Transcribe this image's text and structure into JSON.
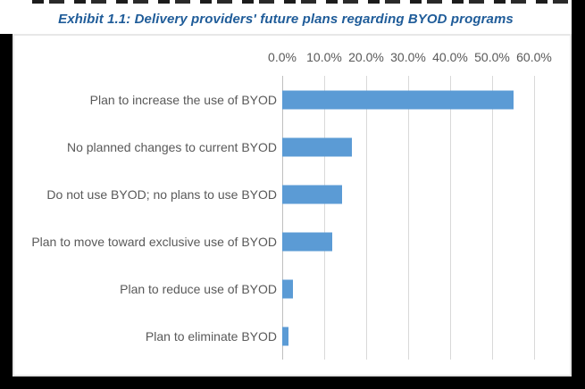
{
  "title": {
    "text": "Exhibit 1.1: Delivery providers' future plans regarding BYOD programs",
    "color": "#1F5C99"
  },
  "chart_data": {
    "type": "bar",
    "orientation": "horizontal",
    "title": "Exhibit 1.1: Delivery providers' future plans regarding BYOD programs",
    "categories": [
      "Plan to increase the use of BYOD",
      "No planned changes to current BYOD",
      "Do not use BYOD; no plans to use BYOD",
      "Plan to move toward exclusive use of BYOD",
      "Plan to reduce use of BYOD",
      "Plan to eliminate BYOD"
    ],
    "values": [
      55.2,
      16.6,
      14.3,
      11.9,
      2.6,
      1.4
    ],
    "unit": "%",
    "x_ticks": [
      "0.0%",
      "10.0%",
      "20.0%",
      "30.0%",
      "40.0%",
      "50.0%",
      "60.0%"
    ],
    "xlim": [
      0,
      60
    ],
    "value_axis_position": "top",
    "grid": true,
    "legend": "none",
    "bar_color": "#5B9BD5",
    "gridline_color": "#D9D9D9",
    "axis_line_color": "#BFBFBF",
    "axis_text_color": "#595959",
    "category_text_color": "#595959"
  }
}
